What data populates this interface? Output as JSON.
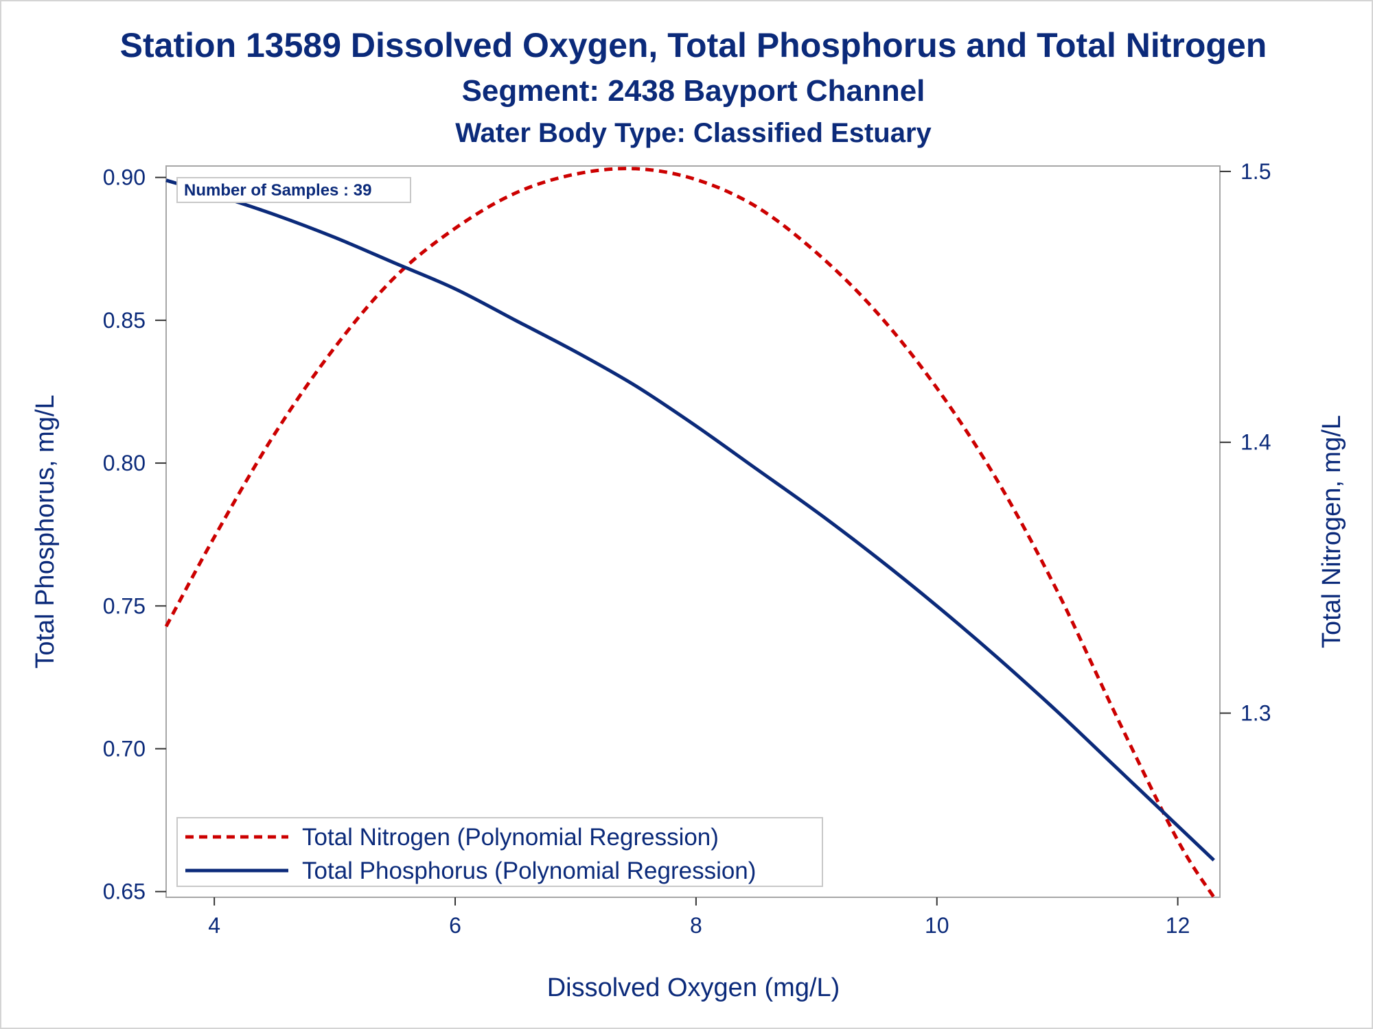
{
  "titles": {
    "line1": "Station 13589  Dissolved Oxygen, Total Phosphorus and Total Nitrogen",
    "line2": "Segment: 2438  Bayport Channel",
    "line3": "Water Body Type: Classified Estuary"
  },
  "inset_note": "Number of Samples : 39",
  "colors": {
    "text": "#0b2a7a",
    "nitrogen": "#cc0000",
    "phosphorus": "#0b2a7a",
    "frame": "#a6a6a6"
  },
  "chart_data": {
    "type": "line",
    "xlabel": "Dissolved Oxygen (mg/L)",
    "ylabel": "Total Phosphorus, mg/L",
    "y2label": "Total Nitrogen, mg/L",
    "xlim": [
      3.6,
      12.35
    ],
    "ylim": [
      0.648,
      0.904
    ],
    "y2lim": [
      1.232,
      1.502
    ],
    "xticks": [
      4,
      6,
      8,
      10,
      12
    ],
    "xtick_labels": [
      "4",
      "6",
      "8",
      "10",
      "12"
    ],
    "yticks": [
      0.65,
      0.7,
      0.75,
      0.8,
      0.85,
      0.9
    ],
    "ytick_labels": [
      "0.65",
      "0.70",
      "0.75",
      "0.80",
      "0.85",
      "0.90"
    ],
    "y2ticks": [
      1.3,
      1.4,
      1.5
    ],
    "y2tick_labels": [
      "1.3",
      "1.4",
      "1.5"
    ],
    "grid": false,
    "legend_position": "bottom-left",
    "series": [
      {
        "name": "Total Nitrogen (Polynomial Regression)",
        "axis": "right",
        "style": "dashed",
        "color": "#cc0000",
        "x": [
          3.6,
          4.0,
          4.5,
          5.0,
          5.5,
          6.0,
          6.5,
          7.0,
          7.5,
          8.0,
          8.5,
          9.0,
          9.5,
          10.0,
          10.5,
          11.0,
          11.5,
          12.0,
          12.3
        ],
        "y": [
          1.332,
          1.365,
          1.403,
          1.435,
          1.461,
          1.479,
          1.492,
          1.499,
          1.501,
          1.497,
          1.487,
          1.47,
          1.448,
          1.42,
          1.386,
          1.345,
          1.298,
          1.253,
          1.232
        ]
      },
      {
        "name": "Total Phosphorus (Polynomial Regression)",
        "axis": "left",
        "style": "solid",
        "color": "#0b2a7a",
        "x": [
          3.6,
          4.0,
          4.5,
          5.0,
          5.5,
          6.0,
          6.5,
          7.0,
          7.5,
          8.0,
          8.5,
          9.0,
          9.5,
          10.0,
          10.5,
          11.0,
          11.5,
          12.0,
          12.3
        ],
        "y": [
          0.899,
          0.894,
          0.887,
          0.879,
          0.87,
          0.861,
          0.85,
          0.839,
          0.827,
          0.813,
          0.798,
          0.783,
          0.767,
          0.75,
          0.732,
          0.713,
          0.693,
          0.673,
          0.661
        ]
      }
    ]
  }
}
